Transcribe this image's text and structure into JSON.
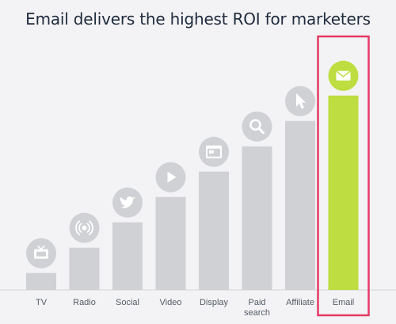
{
  "chart_data": {
    "type": "bar",
    "title": "Email delivers the highest ROI for marketers",
    "categories": [
      "TV",
      "Radio",
      "Social",
      "Video",
      "Display",
      "Paid search",
      "Affiliate",
      "Email"
    ],
    "category_lines": [
      [
        "TV"
      ],
      [
        "Radio"
      ],
      [
        "Social"
      ],
      [
        "Video"
      ],
      [
        "Display"
      ],
      [
        "Paid",
        "search"
      ],
      [
        "Affiliate"
      ],
      [
        "Email"
      ]
    ],
    "values": [
      1,
      2.5,
      4,
      5.5,
      7,
      8.5,
      10,
      11.5
    ],
    "ylim": [
      0,
      12
    ],
    "icons": [
      "tv-icon",
      "radio-broadcast-icon",
      "twitter-bird-icon",
      "play-icon",
      "display-window-icon",
      "search-icon",
      "cursor-icon",
      "mail-envelope-icon"
    ],
    "highlight_index": 7,
    "colors": {
      "bar": "#d0d1d5",
      "highlight": "#bedd40",
      "box": "#e43b64",
      "icon_circle": "#d0d1d5",
      "icon_glyph": "#ffffff",
      "axis": "#d6d6d9",
      "label": "#555b66"
    }
  }
}
